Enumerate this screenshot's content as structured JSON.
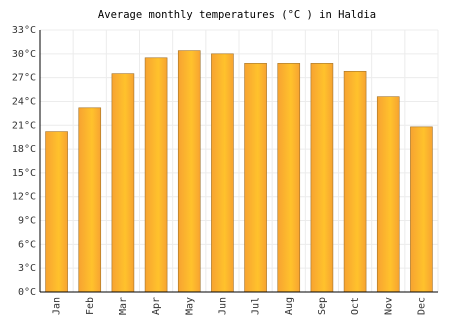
{
  "chart_data": {
    "type": "bar",
    "title": "Average monthly temperatures (°C ) in Haldia",
    "categories": [
      "Jan",
      "Feb",
      "Mar",
      "Apr",
      "May",
      "Jun",
      "Jul",
      "Aug",
      "Sep",
      "Oct",
      "Nov",
      "Dec"
    ],
    "values": [
      20.2,
      23.2,
      27.5,
      29.5,
      30.4,
      30.0,
      28.8,
      28.8,
      28.8,
      27.8,
      24.6,
      20.8
    ],
    "color": "#f7a331",
    "ylim": [
      0,
      33
    ],
    "yticks": [
      {
        "value": 0,
        "label": "0°C"
      },
      {
        "value": 3,
        "label": "3°C"
      },
      {
        "value": 6,
        "label": "6°C"
      },
      {
        "value": 9,
        "label": "9°C"
      },
      {
        "value": 12,
        "label": "12°C"
      },
      {
        "value": 15,
        "label": "15°C"
      },
      {
        "value": 18,
        "label": "18°C"
      },
      {
        "value": 21,
        "label": "21°C"
      },
      {
        "value": 24,
        "label": "24°C"
      },
      {
        "value": 27,
        "label": "27°C"
      },
      {
        "value": 30,
        "label": "30°C"
      },
      {
        "value": 33,
        "label": "33°C"
      }
    ],
    "grid": true
  }
}
